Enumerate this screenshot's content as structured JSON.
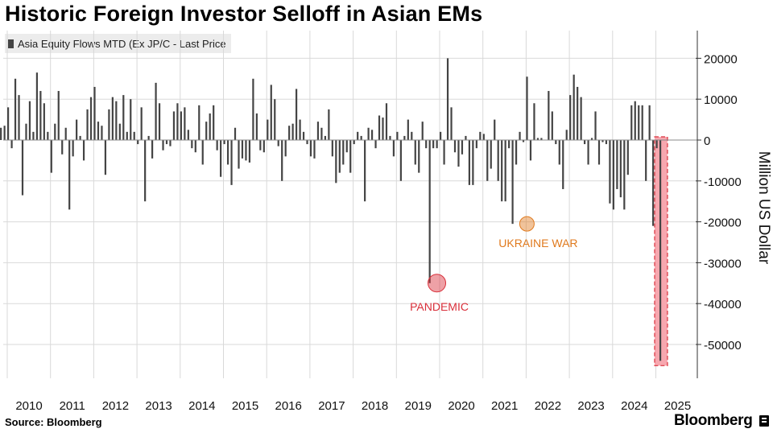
{
  "title": "Historic Foreign Investor Selloff in Asian EMs",
  "source": "Source: Bloomberg",
  "brand": "Bloomberg",
  "colors": {
    "bar": "#444444",
    "grid": "#d9d9d9",
    "pandemic": "#d92f3a",
    "ukraine": "#e07a1e",
    "highlight": "#f7a7af"
  },
  "chart_data": {
    "type": "bar",
    "legend": "Asia Equity Flows MTD (Ex JP/C - Last Price",
    "ylabel": "Million US Dollar",
    "ylim": [
      -58000,
      27000
    ],
    "yticks": [
      20000,
      10000,
      0,
      -10000,
      -20000,
      -30000,
      -40000,
      -50000
    ],
    "xlabels": [
      "2010",
      "2011",
      "2012",
      "2013",
      "2014",
      "2015",
      "2016",
      "2017",
      "2018",
      "2019",
      "2020",
      "2021",
      "2022",
      "2023",
      "2024",
      "2025"
    ],
    "x_start": "2009-11",
    "grid": true,
    "values": [
      3000,
      3500,
      8000,
      -2000,
      15000,
      11000,
      -13500,
      4000,
      9500,
      2000,
      16500,
      12000,
      9000,
      2000,
      -8000,
      4000,
      12000,
      -3500,
      3000,
      -17000,
      -4000,
      5000,
      1000,
      -5000,
      7500,
      10500,
      13000,
      4500,
      3500,
      -8500,
      7500,
      10500,
      9500,
      4000,
      11000,
      2000,
      10000,
      2000,
      -1000,
      8000,
      -15000,
      1000,
      -4500,
      14000,
      9000,
      -2500,
      -1000,
      -1500,
      7000,
      9000,
      7000,
      8000,
      2500,
      -2000,
      -3000,
      8500,
      -6000,
      4500,
      6500,
      8500,
      -2500,
      -9000,
      -1000,
      -6000,
      -11000,
      3000,
      -7000,
      -4500,
      -5000,
      -5500,
      15000,
      6500,
      -2500,
      -3000,
      5000,
      13500,
      10000,
      -1500,
      -10000,
      -4000,
      3500,
      4000,
      12500,
      5000,
      2000,
      -1000,
      -4000,
      -4500,
      4500,
      3000,
      1000,
      7500,
      -4000,
      -10500,
      -8000,
      -6000,
      -3000,
      -8000,
      -1000,
      2000,
      1000,
      -15000,
      3000,
      2500,
      -2000,
      6000,
      5500,
      9000,
      1000,
      -4000,
      2000,
      -10000,
      1000,
      5000,
      2000,
      -6000,
      -8000,
      4500,
      -2000,
      -35000,
      -2000,
      -2000,
      2000,
      -6000,
      20000,
      8000,
      -3000,
      -6500,
      -3500,
      1000,
      -11000,
      -11000,
      -2000,
      2000,
      1500,
      -10000,
      -7000,
      5000,
      -10000,
      -15000,
      -15000,
      -2000,
      -20500,
      -6000,
      2000,
      -500,
      15500,
      -5000,
      9000,
      500,
      500,
      0,
      12000,
      7000,
      -1000,
      -6000,
      -12000,
      2500,
      11000,
      16000,
      13000,
      10500,
      -1000,
      -6000,
      500,
      7000,
      -6000,
      -500,
      -1000,
      -15500,
      -17000,
      -12000,
      -14000,
      -17000,
      -8500,
      8500,
      9500,
      8500,
      8500,
      -10000,
      8500,
      -21000,
      -2000,
      -54000
    ],
    "annotations": [
      {
        "label": "PANDEMIC",
        "index": 121,
        "value": -35000,
        "color": "#d92f3a"
      },
      {
        "label": "UKRAINE WAR",
        "index": 146,
        "value": -20500,
        "color": "#e07a1e"
      }
    ]
  }
}
